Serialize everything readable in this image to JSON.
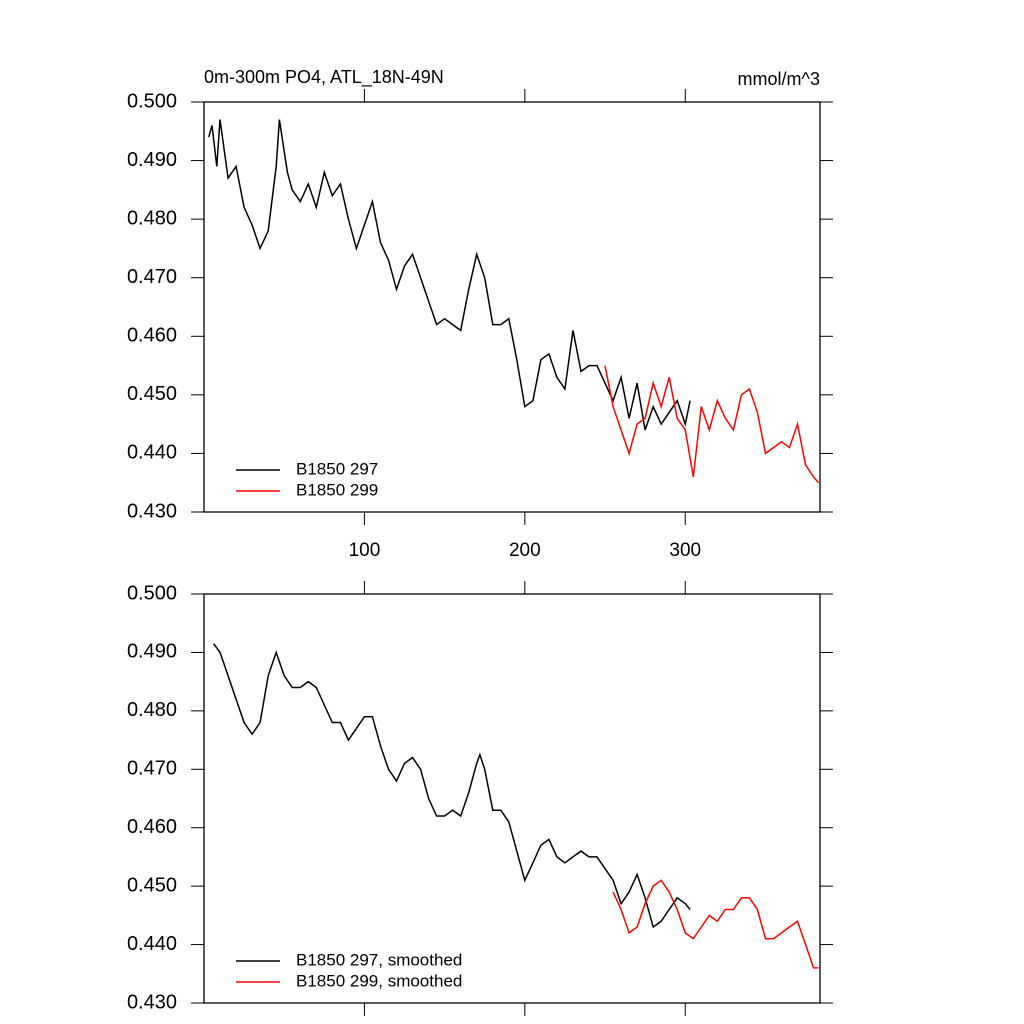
{
  "chart_data": [
    {
      "type": "line",
      "title": "0m-300m PO4, ATL_18N-49N",
      "units": "mmol/m^3",
      "xlim": [
        0,
        384
      ],
      "xticks": [
        100,
        200,
        300
      ],
      "xtick_labels": true,
      "ylim": [
        0.43,
        0.5
      ],
      "yticks": [
        {
          "value": 0.43,
          "label": "0.430"
        },
        {
          "value": 0.44,
          "label": "0.440"
        },
        {
          "value": 0.45,
          "label": "0.450"
        },
        {
          "value": 0.46,
          "label": "0.460"
        },
        {
          "value": 0.47,
          "label": "0.470"
        },
        {
          "value": 0.48,
          "label": "0.480"
        },
        {
          "value": 0.49,
          "label": "0.490"
        },
        {
          "value": 0.5,
          "label": "0.500"
        }
      ],
      "legend": "lower left",
      "series": [
        {
          "name": "B1850 297",
          "color": "#000000",
          "x": [
            3,
            5,
            8,
            10,
            15,
            20,
            25,
            30,
            35,
            40,
            45,
            47,
            52,
            55,
            60,
            65,
            70,
            75,
            80,
            85,
            90,
            95,
            100,
            105,
            110,
            115,
            120,
            125,
            130,
            135,
            140,
            145,
            150,
            155,
            160,
            165,
            170,
            175,
            180,
            185,
            190,
            195,
            200,
            205,
            210,
            215,
            220,
            225,
            230,
            235,
            240,
            245,
            250,
            255,
            260,
            265,
            270,
            275,
            280,
            285,
            290,
            295,
            300,
            303
          ],
          "values": [
            0.494,
            0.496,
            0.489,
            0.497,
            0.487,
            0.489,
            0.482,
            0.479,
            0.475,
            0.478,
            0.489,
            0.497,
            0.488,
            0.485,
            0.483,
            0.486,
            0.482,
            0.488,
            0.484,
            0.486,
            0.48,
            0.475,
            0.479,
            0.483,
            0.476,
            0.473,
            0.468,
            0.472,
            0.474,
            0.47,
            0.466,
            0.462,
            0.463,
            0.462,
            0.461,
            0.468,
            0.474,
            0.47,
            0.462,
            0.462,
            0.463,
            0.456,
            0.448,
            0.449,
            0.456,
            0.457,
            0.453,
            0.451,
            0.461,
            0.454,
            0.455,
            0.455,
            0.452,
            0.449,
            0.453,
            0.446,
            0.452,
            0.444,
            0.448,
            0.445,
            0.447,
            0.449,
            0.445,
            0.449
          ]
        },
        {
          "name": "B1850 299",
          "color": "#ff0000",
          "x": [
            250,
            255,
            260,
            265,
            270,
            275,
            280,
            285,
            290,
            295,
            300,
            305,
            310,
            315,
            320,
            325,
            330,
            335,
            340,
            345,
            350,
            355,
            360,
            365,
            370,
            375,
            380,
            383
          ],
          "values": [
            0.455,
            0.448,
            0.444,
            0.44,
            0.445,
            0.446,
            0.452,
            0.448,
            0.453,
            0.446,
            0.444,
            0.436,
            0.448,
            0.444,
            0.449,
            0.446,
            0.444,
            0.45,
            0.451,
            0.447,
            0.44,
            0.441,
            0.442,
            0.441,
            0.445,
            0.438,
            0.436,
            0.435
          ]
        }
      ]
    },
    {
      "type": "line",
      "xlim": [
        0,
        384
      ],
      "xticks": [
        100,
        200,
        300
      ],
      "xtick_labels": false,
      "ylim": [
        0.43,
        0.5
      ],
      "yticks": [
        {
          "value": 0.43,
          "label": "0.430"
        },
        {
          "value": 0.44,
          "label": "0.440"
        },
        {
          "value": 0.45,
          "label": "0.450"
        },
        {
          "value": 0.46,
          "label": "0.460"
        },
        {
          "value": 0.47,
          "label": "0.470"
        },
        {
          "value": 0.48,
          "label": "0.480"
        },
        {
          "value": 0.49,
          "label": "0.490"
        },
        {
          "value": 0.5,
          "label": "0.500"
        }
      ],
      "legend": "lower left",
      "series": [
        {
          "name": "B1850 297, smoothed",
          "color": "#000000",
          "x": [
            6,
            10,
            15,
            20,
            25,
            30,
            35,
            40,
            45,
            50,
            55,
            60,
            65,
            70,
            75,
            80,
            85,
            90,
            95,
            100,
            105,
            110,
            115,
            120,
            125,
            130,
            135,
            140,
            145,
            150,
            155,
            160,
            165,
            170,
            172,
            175,
            180,
            185,
            190,
            195,
            200,
            205,
            210,
            215,
            220,
            225,
            230,
            235,
            240,
            245,
            250,
            255,
            260,
            265,
            270,
            275,
            280,
            285,
            290,
            295,
            300,
            303
          ],
          "values": [
            0.4915,
            0.49,
            0.486,
            0.482,
            0.478,
            0.476,
            0.478,
            0.486,
            0.49,
            0.486,
            0.484,
            0.484,
            0.485,
            0.484,
            0.481,
            0.478,
            0.478,
            0.475,
            0.477,
            0.479,
            0.479,
            0.474,
            0.47,
            0.468,
            0.471,
            0.472,
            0.47,
            0.465,
            0.462,
            0.462,
            0.463,
            0.462,
            0.466,
            0.471,
            0.4725,
            0.47,
            0.463,
            0.463,
            0.461,
            0.456,
            0.451,
            0.454,
            0.457,
            0.458,
            0.455,
            0.454,
            0.455,
            0.456,
            0.455,
            0.455,
            0.453,
            0.451,
            0.447,
            0.449,
            0.452,
            0.448,
            0.443,
            0.444,
            0.446,
            0.448,
            0.447,
            0.446
          ]
        },
        {
          "name": "B1850 299, smoothed",
          "color": "#ff0000",
          "x": [
            255,
            260,
            265,
            270,
            275,
            280,
            285,
            290,
            295,
            300,
            305,
            310,
            315,
            320,
            325,
            330,
            335,
            340,
            345,
            350,
            355,
            360,
            365,
            370,
            375,
            380,
            383
          ],
          "values": [
            0.449,
            0.446,
            0.442,
            0.443,
            0.447,
            0.45,
            0.451,
            0.449,
            0.446,
            0.442,
            0.441,
            0.443,
            0.445,
            0.444,
            0.446,
            0.446,
            0.448,
            0.448,
            0.446,
            0.441,
            0.441,
            0.442,
            0.443,
            0.444,
            0.44,
            0.436,
            0.436
          ]
        }
      ]
    }
  ]
}
